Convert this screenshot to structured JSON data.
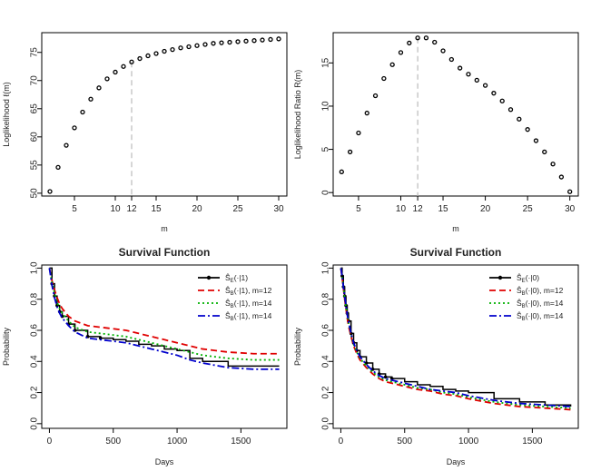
{
  "chart_data": [
    {
      "type": "scatter",
      "title": "",
      "xlabel": "m",
      "ylabel": "Loglikelihood ℓ(m)",
      "xlim": [
        1,
        31
      ],
      "ylim": [
        49.5,
        78.5
      ],
      "xticks": [
        "5",
        "10",
        "12",
        "15",
        "20",
        "25",
        "30"
      ],
      "yticks": [
        "50",
        "55",
        "60",
        "65",
        "70",
        "75"
      ],
      "marker": "open-circle",
      "vline": {
        "x": 12,
        "style": "dashed",
        "color": "#bbbbbb"
      },
      "x": [
        2,
        3,
        4,
        5,
        6,
        7,
        8,
        9,
        10,
        11,
        12,
        13,
        14,
        15,
        16,
        17,
        18,
        19,
        20,
        21,
        22,
        23,
        24,
        25,
        26,
        27,
        28,
        29,
        30
      ],
      "y": [
        50.3,
        54.6,
        58.5,
        61.6,
        64.4,
        66.7,
        68.7,
        70.3,
        71.5,
        72.5,
        73.3,
        73.9,
        74.4,
        74.8,
        75.2,
        75.5,
        75.8,
        76.0,
        76.2,
        76.4,
        76.6,
        76.7,
        76.8,
        76.9,
        77.0,
        77.1,
        77.2,
        77.3,
        77.4
      ]
    },
    {
      "type": "scatter",
      "title": "",
      "xlabel": "m",
      "ylabel": "Loglikelihood Ratio R(m)",
      "xlim": [
        2,
        31
      ],
      "ylim": [
        -0.4,
        18.5
      ],
      "xticks": [
        "5",
        "10",
        "12",
        "15",
        "20",
        "25",
        "30"
      ],
      "yticks": [
        "0",
        "5",
        "10",
        "15"
      ],
      "marker": "open-circle",
      "vline": {
        "x": 12,
        "style": "dashed",
        "color": "#bbbbbb"
      },
      "x": [
        3,
        4,
        5,
        6,
        7,
        8,
        9,
        10,
        11,
        12,
        13,
        14,
        15,
        16,
        17,
        18,
        19,
        20,
        21,
        22,
        23,
        24,
        25,
        26,
        27,
        28,
        29,
        30
      ],
      "y": [
        2.4,
        4.7,
        6.9,
        9.2,
        11.2,
        13.2,
        14.8,
        16.2,
        17.3,
        17.9,
        17.9,
        17.4,
        16.4,
        15.4,
        14.4,
        13.7,
        13.0,
        12.4,
        11.5,
        10.6,
        9.6,
        8.5,
        7.3,
        6.0,
        4.7,
        3.3,
        1.8,
        0.1
      ]
    },
    {
      "type": "line",
      "title": "Survival Function",
      "xlabel": "Days",
      "ylabel": "Probability",
      "xlim": [
        -60,
        1860
      ],
      "ylim": [
        -0.03,
        1.02
      ],
      "xticks": [
        "0",
        "500",
        "1000",
        "1500"
      ],
      "yticks": [
        "0.0",
        "0.2",
        "0.4",
        "0.6",
        "0.8",
        "1.0"
      ],
      "legend_position": "top-right",
      "series": [
        {
          "name": "Ŝ_E(·|1)",
          "style": "solid-with-dots",
          "color": "#000000",
          "x": [
            0,
            20,
            40,
            60,
            80,
            100,
            150,
            200,
            300,
            400,
            500,
            600,
            700,
            800,
            900,
            1000,
            1100,
            1200,
            1400,
            1800
          ],
          "y": [
            1.0,
            0.9,
            0.82,
            0.76,
            0.72,
            0.69,
            0.64,
            0.6,
            0.56,
            0.55,
            0.54,
            0.53,
            0.51,
            0.5,
            0.48,
            0.47,
            0.42,
            0.4,
            0.37,
            0.37
          ]
        },
        {
          "name": "Ŝ_B(·|1), m=12",
          "style": "dashed",
          "color": "#e00000",
          "x": [
            0,
            20,
            40,
            60,
            80,
            100,
            150,
            200,
            300,
            400,
            500,
            600,
            700,
            800,
            900,
            1000,
            1100,
            1200,
            1400,
            1600,
            1800
          ],
          "y": [
            1.0,
            0.92,
            0.86,
            0.81,
            0.77,
            0.74,
            0.69,
            0.66,
            0.63,
            0.62,
            0.61,
            0.6,
            0.58,
            0.56,
            0.54,
            0.52,
            0.5,
            0.48,
            0.46,
            0.45,
            0.45
          ]
        },
        {
          "name": "Ŝ_B(·|1), m=14",
          "style": "dotted",
          "color": "#00b000",
          "x": [
            0,
            20,
            40,
            60,
            80,
            100,
            150,
            200,
            300,
            400,
            500,
            600,
            700,
            800,
            900,
            1000,
            1100,
            1200,
            1400,
            1600,
            1800
          ],
          "y": [
            1.0,
            0.91,
            0.84,
            0.78,
            0.74,
            0.71,
            0.66,
            0.62,
            0.59,
            0.58,
            0.57,
            0.56,
            0.54,
            0.52,
            0.5,
            0.48,
            0.46,
            0.44,
            0.42,
            0.41,
            0.41
          ]
        },
        {
          "name": "Ŝ_B(·|1), m=14",
          "style": "dashdot",
          "color": "#0000cc",
          "x": [
            0,
            20,
            40,
            60,
            80,
            100,
            150,
            200,
            300,
            400,
            500,
            600,
            700,
            800,
            900,
            1000,
            1100,
            1200,
            1400,
            1600,
            1800
          ],
          "y": [
            1.0,
            0.89,
            0.81,
            0.75,
            0.71,
            0.68,
            0.63,
            0.59,
            0.55,
            0.54,
            0.53,
            0.52,
            0.5,
            0.48,
            0.46,
            0.44,
            0.41,
            0.39,
            0.36,
            0.35,
            0.35
          ]
        }
      ]
    },
    {
      "type": "line",
      "title": "Survival Function",
      "xlabel": "Days",
      "ylabel": "Probability",
      "xlim": [
        -60,
        1860
      ],
      "ylim": [
        -0.03,
        1.02
      ],
      "xticks": [
        "0",
        "500",
        "1000",
        "1500"
      ],
      "yticks": [
        "0.0",
        "0.2",
        "0.4",
        "0.6",
        "0.8",
        "1.0"
      ],
      "legend_position": "top-right",
      "series": [
        {
          "name": "Ŝ_E(·|0)",
          "style": "solid-with-dots",
          "color": "#000000",
          "x": [
            0,
            10,
            20,
            30,
            40,
            50,
            60,
            80,
            100,
            125,
            150,
            200,
            250,
            300,
            350,
            400,
            500,
            600,
            700,
            800,
            900,
            1000,
            1200,
            1400,
            1600,
            1800
          ],
          "y": [
            1.0,
            0.95,
            0.88,
            0.82,
            0.76,
            0.71,
            0.66,
            0.58,
            0.52,
            0.47,
            0.43,
            0.39,
            0.35,
            0.32,
            0.3,
            0.29,
            0.27,
            0.25,
            0.24,
            0.22,
            0.21,
            0.2,
            0.16,
            0.14,
            0.12,
            0.11
          ]
        },
        {
          "name": "Ŝ_B(·|0), m=12",
          "style": "dashed",
          "color": "#e00000",
          "x": [
            0,
            10,
            20,
            30,
            40,
            50,
            60,
            80,
            100,
            125,
            150,
            200,
            250,
            300,
            350,
            400,
            500,
            600,
            700,
            800,
            900,
            1000,
            1200,
            1400,
            1600,
            1800
          ],
          "y": [
            1.0,
            0.94,
            0.87,
            0.8,
            0.74,
            0.68,
            0.63,
            0.56,
            0.5,
            0.45,
            0.41,
            0.36,
            0.32,
            0.29,
            0.27,
            0.26,
            0.24,
            0.22,
            0.21,
            0.19,
            0.18,
            0.16,
            0.13,
            0.11,
            0.1,
            0.09
          ]
        },
        {
          "name": "Ŝ_B(·|0), m=14",
          "style": "dotted",
          "color": "#00b000",
          "x": [
            0,
            10,
            20,
            30,
            40,
            50,
            60,
            80,
            100,
            125,
            150,
            200,
            250,
            300,
            350,
            400,
            500,
            600,
            700,
            800,
            900,
            1000,
            1200,
            1400,
            1600,
            1800
          ],
          "y": [
            1.0,
            0.95,
            0.88,
            0.81,
            0.75,
            0.7,
            0.65,
            0.57,
            0.51,
            0.46,
            0.42,
            0.37,
            0.33,
            0.3,
            0.28,
            0.27,
            0.25,
            0.23,
            0.22,
            0.2,
            0.19,
            0.17,
            0.14,
            0.12,
            0.11,
            0.1
          ]
        },
        {
          "name": "Ŝ_B(·|0), m=14",
          "style": "dashdot",
          "color": "#0000cc",
          "x": [
            0,
            10,
            20,
            30,
            40,
            50,
            60,
            80,
            100,
            125,
            150,
            200,
            250,
            300,
            350,
            400,
            500,
            600,
            700,
            800,
            900,
            1000,
            1200,
            1400,
            1600,
            1800
          ],
          "y": [
            1.0,
            0.95,
            0.88,
            0.82,
            0.76,
            0.7,
            0.66,
            0.58,
            0.52,
            0.47,
            0.43,
            0.38,
            0.34,
            0.31,
            0.29,
            0.28,
            0.26,
            0.24,
            0.22,
            0.21,
            0.2,
            0.18,
            0.15,
            0.13,
            0.12,
            0.11
          ]
        }
      ]
    }
  ]
}
